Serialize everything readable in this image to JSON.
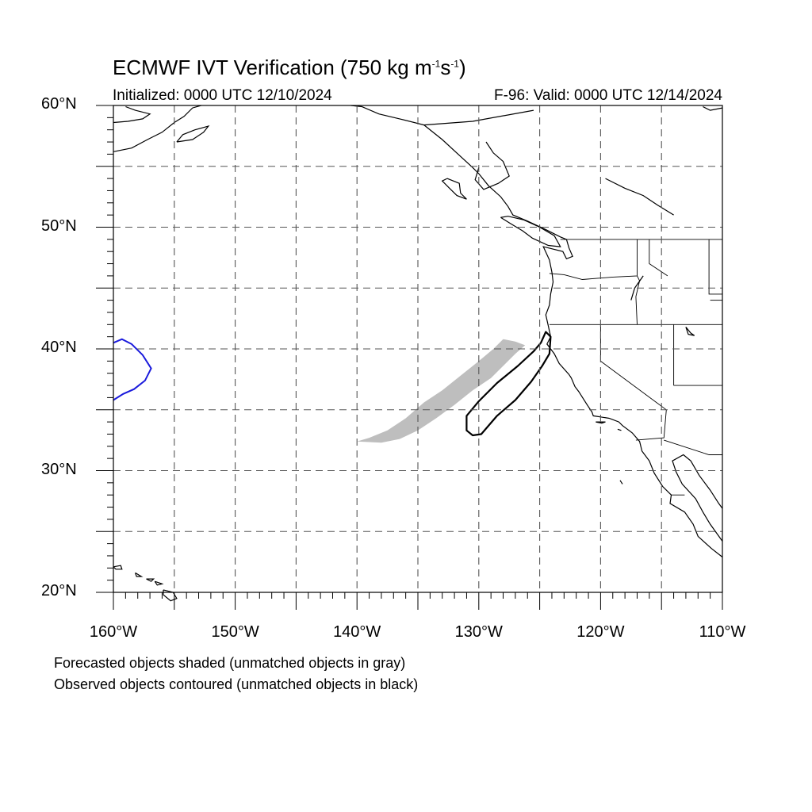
{
  "title": {
    "prefix": "ECMWF IVT Verification (750 kg m",
    "exp1": "-1",
    "mid": "s",
    "exp2": "-1",
    "suffix": ")"
  },
  "subtitle_left": "Initialized: 0000 UTC 12/10/2024",
  "subtitle_right": "F-96: Valid: 0000 UTC 12/14/2024",
  "map": {
    "projection": "cylindrical equidistant",
    "lon_range": [
      -160,
      -110
    ],
    "lat_range": [
      20,
      60
    ],
    "gridlines": "dashed every 5 degrees",
    "lat_ticks": [
      "20°N",
      "30°N",
      "40°N",
      "50°N",
      "60°N"
    ],
    "lon_ticks": [
      "160°W",
      "150°W",
      "140°W",
      "130°W",
      "120°W",
      "110°W"
    ],
    "colors": {
      "forecast_unmatched_fill": "#bebebe",
      "observed_unmatched_contour": "#000000",
      "observed_edge_contour": "#1a1adc",
      "coastline": "#000000",
      "grid": "#555555"
    }
  },
  "objects": {
    "forecast_unmatched": {
      "description": "gray shaded",
      "polygon_lonlat": [
        [
          -140.0,
          32.4
        ],
        [
          -139.0,
          32.7
        ],
        [
          -137.5,
          33.3
        ],
        [
          -136.0,
          34.3
        ],
        [
          -134.5,
          35.6
        ],
        [
          -133.0,
          36.6
        ],
        [
          -131.5,
          37.8
        ],
        [
          -130.0,
          39.0
        ],
        [
          -128.8,
          40.0
        ],
        [
          -128.0,
          40.8
        ],
        [
          -127.0,
          40.6
        ],
        [
          -126.2,
          40.3
        ],
        [
          -127.0,
          39.6
        ],
        [
          -128.0,
          38.6
        ],
        [
          -129.0,
          37.6
        ],
        [
          -130.5,
          36.6
        ],
        [
          -132.0,
          35.4
        ],
        [
          -133.5,
          34.3
        ],
        [
          -135.0,
          33.3
        ],
        [
          -136.5,
          32.6
        ],
        [
          -138.0,
          32.3
        ],
        [
          -140.0,
          32.4
        ]
      ]
    },
    "observed_unmatched": {
      "description": "black contour",
      "polygon_lonlat": [
        [
          -131.0,
          33.3
        ],
        [
          -130.5,
          32.9
        ],
        [
          -129.8,
          33.0
        ],
        [
          -128.5,
          34.5
        ],
        [
          -127.0,
          35.8
        ],
        [
          -125.7,
          37.3
        ],
        [
          -124.8,
          38.6
        ],
        [
          -124.2,
          39.6
        ],
        [
          -124.1,
          41.0
        ],
        [
          -124.5,
          41.4
        ],
        [
          -124.9,
          40.5
        ],
        [
          -125.5,
          39.8
        ],
        [
          -126.8,
          38.6
        ],
        [
          -128.5,
          37.2
        ],
        [
          -130.0,
          35.7
        ],
        [
          -131.0,
          34.5
        ],
        [
          -131.0,
          33.3
        ]
      ]
    },
    "observed_edge": {
      "description": "blue contour at western boundary",
      "polyline_lonlat": [
        [
          -160.0,
          40.5
        ],
        [
          -159.3,
          40.8
        ],
        [
          -158.5,
          40.4
        ],
        [
          -157.6,
          39.5
        ],
        [
          -156.9,
          38.4
        ],
        [
          -157.4,
          37.4
        ],
        [
          -158.3,
          36.7
        ],
        [
          -159.2,
          36.3
        ],
        [
          -160.0,
          35.8
        ]
      ]
    }
  },
  "legend": {
    "line1": "Forecasted objects shaded (unmatched objects in gray)",
    "line2": "Observed objects contoured (unmatched objects in black)"
  }
}
